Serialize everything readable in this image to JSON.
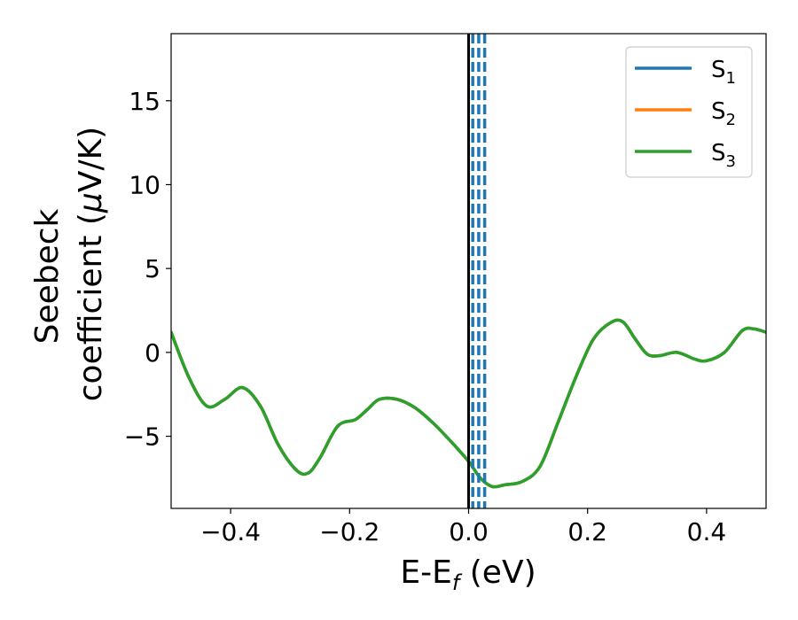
{
  "chart_data": {
    "type": "line",
    "xlabel_main": "E-E",
    "xlabel_sub": "f",
    "xlabel_unit": " (eV)",
    "ylabel_line1": "Seebeck",
    "ylabel_line2": "coefficient  (",
    "ylabel_mu": "μ",
    "ylabel_unit": "V/K)",
    "xlim": [
      -0.5,
      0.5
    ],
    "ylim": [
      -9.3,
      19.0
    ],
    "x_ticks": [
      -0.4,
      -0.2,
      0.0,
      0.2,
      0.4
    ],
    "x_tick_labels": [
      "−0.4",
      "−0.2",
      "0.0",
      "0.2",
      "0.4"
    ],
    "y_ticks": [
      -5,
      0,
      5,
      10,
      15
    ],
    "y_tick_labels": [
      "−5",
      "0",
      "5",
      "10",
      "15"
    ],
    "grid": false,
    "legend_position": "top-right",
    "colors": {
      "S1": "#1f77b4",
      "S2": "#ff7f0e",
      "S3": "#2ca02c",
      "fermi": "#000000"
    },
    "series": [
      {
        "name": "S",
        "sub": "1",
        "color": "#1f77b4",
        "x": [
          -0.5,
          -0.47,
          -0.44,
          -0.41,
          -0.38,
          -0.35,
          -0.32,
          -0.29,
          -0.27,
          -0.25,
          -0.22,
          -0.19,
          -0.17,
          -0.15,
          -0.12,
          -0.09,
          -0.06,
          -0.03,
          0.0,
          0.02,
          0.04,
          0.06,
          0.09,
          0.12,
          0.15,
          0.18,
          0.21,
          0.24,
          0.26,
          0.28,
          0.3,
          0.32,
          0.35,
          0.38,
          0.4,
          0.43,
          0.46,
          0.48,
          0.5
        ],
        "y": [
          1.2,
          -1.5,
          -3.2,
          -2.8,
          -2.1,
          -3.2,
          -5.5,
          -7.0,
          -7.2,
          -6.3,
          -4.4,
          -4.0,
          -3.4,
          -2.8,
          -2.8,
          -3.3,
          -4.2,
          -5.3,
          -6.5,
          -7.5,
          -8.0,
          -7.9,
          -7.7,
          -6.8,
          -4.2,
          -1.5,
          0.8,
          1.8,
          1.8,
          0.8,
          -0.1,
          -0.2,
          0.0,
          -0.4,
          -0.5,
          0.0,
          1.3,
          1.4,
          1.2
        ]
      },
      {
        "name": "S",
        "sub": "2",
        "color": "#ff7f0e",
        "x": [
          -0.5,
          -0.47,
          -0.44,
          -0.41,
          -0.38,
          -0.35,
          -0.32,
          -0.29,
          -0.27,
          -0.25,
          -0.22,
          -0.19,
          -0.17,
          -0.15,
          -0.12,
          -0.09,
          -0.06,
          -0.03,
          0.0,
          0.02,
          0.04,
          0.06,
          0.09,
          0.12,
          0.15,
          0.18,
          0.21,
          0.24,
          0.26,
          0.28,
          0.3,
          0.32,
          0.35,
          0.38,
          0.4,
          0.43,
          0.46,
          0.48,
          0.5
        ],
        "y": [
          1.2,
          -1.5,
          -3.2,
          -2.8,
          -2.1,
          -3.2,
          -5.5,
          -7.0,
          -7.2,
          -6.3,
          -4.4,
          -4.0,
          -3.4,
          -2.8,
          -2.8,
          -3.3,
          -4.2,
          -5.3,
          -6.5,
          -7.5,
          -8.0,
          -7.9,
          -7.7,
          -6.8,
          -4.2,
          -1.5,
          0.8,
          1.8,
          1.8,
          0.8,
          -0.1,
          -0.2,
          0.0,
          -0.4,
          -0.5,
          0.0,
          1.3,
          1.4,
          1.2
        ]
      },
      {
        "name": "S",
        "sub": "3",
        "color": "#2ca02c",
        "x": [
          -0.5,
          -0.47,
          -0.44,
          -0.41,
          -0.38,
          -0.35,
          -0.32,
          -0.29,
          -0.27,
          -0.25,
          -0.22,
          -0.19,
          -0.17,
          -0.15,
          -0.12,
          -0.09,
          -0.06,
          -0.03,
          0.0,
          0.02,
          0.04,
          0.06,
          0.09,
          0.12,
          0.15,
          0.18,
          0.21,
          0.24,
          0.26,
          0.28,
          0.3,
          0.32,
          0.35,
          0.38,
          0.4,
          0.43,
          0.46,
          0.48,
          0.5
        ],
        "y": [
          1.2,
          -1.5,
          -3.2,
          -2.8,
          -2.1,
          -3.2,
          -5.5,
          -7.0,
          -7.2,
          -6.3,
          -4.4,
          -4.0,
          -3.4,
          -2.8,
          -2.8,
          -3.3,
          -4.2,
          -5.3,
          -6.5,
          -7.5,
          -8.0,
          -7.9,
          -7.7,
          -6.8,
          -4.2,
          -1.5,
          0.8,
          1.8,
          1.8,
          0.8,
          -0.1,
          -0.2,
          0.0,
          -0.4,
          -0.5,
          0.0,
          1.3,
          1.4,
          1.2
        ]
      }
    ],
    "fermi_line_x": 0.0,
    "dashed_lines_x": [
      0.007,
      0.017,
      0.027
    ]
  }
}
